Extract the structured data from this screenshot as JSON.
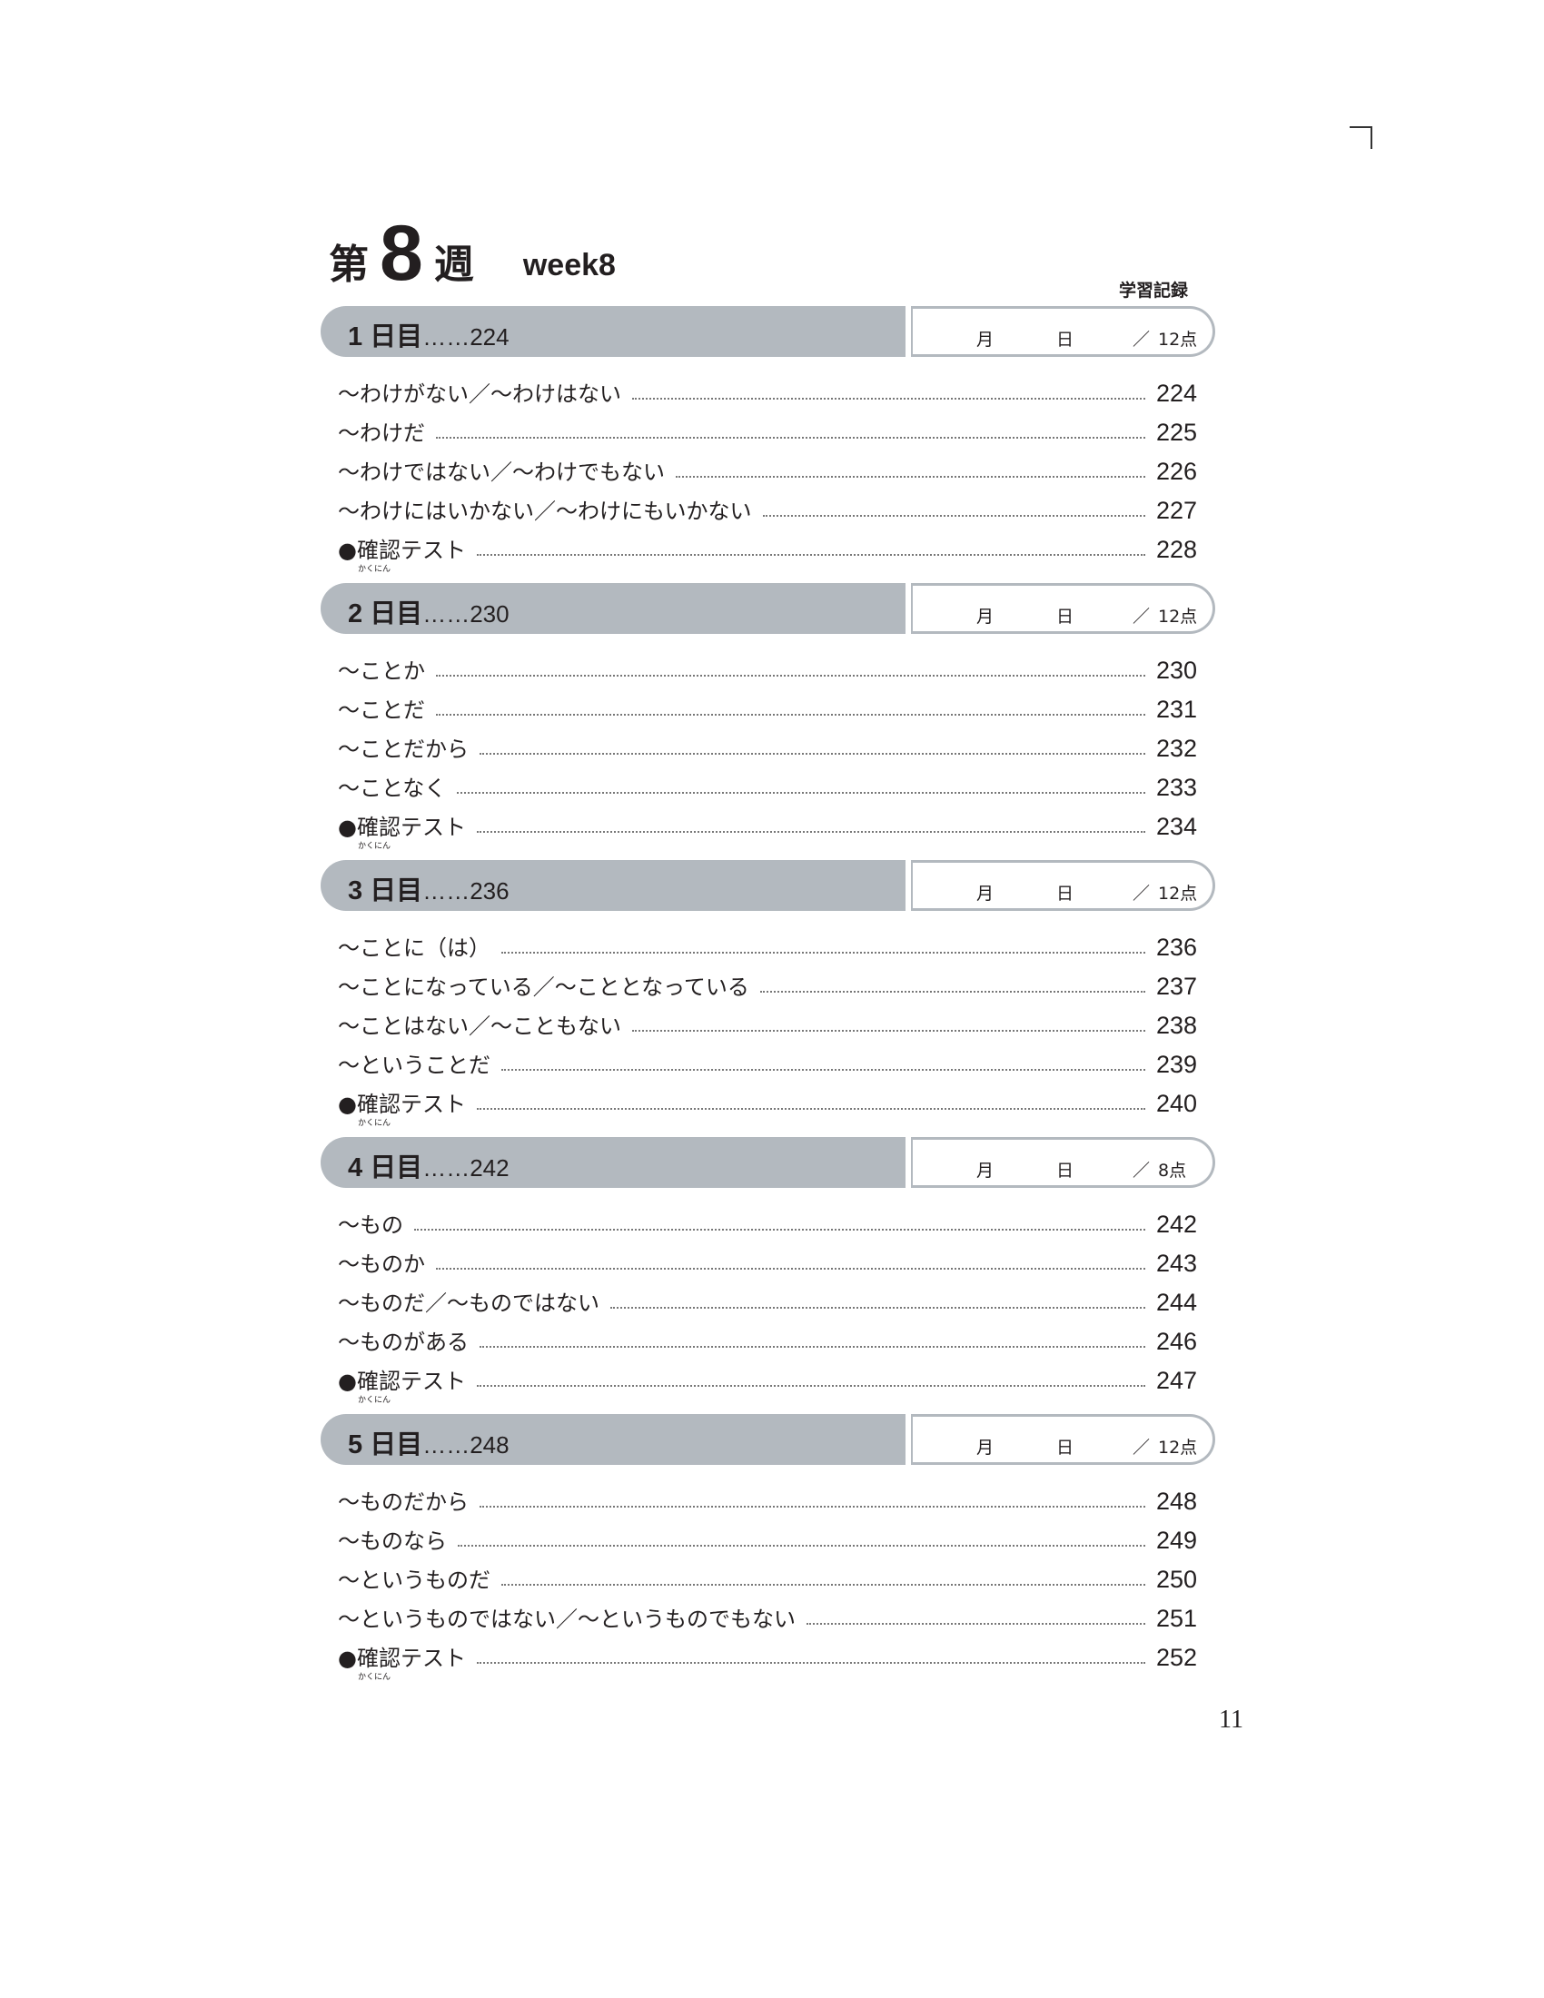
{
  "header": {
    "week_kanji_1": "第",
    "week_number": "8",
    "week_kanji_2": "週",
    "week_label": "week8",
    "record_label": "学習記録"
  },
  "record_box": {
    "month": "月",
    "day": "日",
    "slash": "／"
  },
  "sections": [
    {
      "day": "1 日目",
      "sep": "……",
      "page": "224",
      "score": "12点",
      "items": [
        {
          "label": "〜わけがない／〜わけはない",
          "page": "224"
        },
        {
          "label": "〜わけだ",
          "page": "225"
        },
        {
          "label": "〜わけではない／〜わけでもない",
          "page": "226"
        },
        {
          "label": "〜わけにはいかない／〜わけにもいかない",
          "page": "227"
        },
        {
          "label": "●確認テスト",
          "ruby": "かくにん",
          "page": "228"
        }
      ]
    },
    {
      "day": "2 日目",
      "sep": "……",
      "page": "230",
      "score": "12点",
      "items": [
        {
          "label": "〜ことか",
          "page": "230"
        },
        {
          "label": "〜ことだ",
          "page": "231"
        },
        {
          "label": "〜ことだから",
          "page": "232"
        },
        {
          "label": "〜ことなく",
          "page": "233"
        },
        {
          "label": "●確認テスト",
          "ruby": "かくにん",
          "page": "234"
        }
      ]
    },
    {
      "day": "3 日目",
      "sep": "……",
      "page": "236",
      "score": "12点",
      "items": [
        {
          "label": "〜ことに（は）",
          "page": "236"
        },
        {
          "label": "〜ことになっている／〜こととなっている",
          "page": "237"
        },
        {
          "label": "〜ことはない／〜こともない",
          "page": "238"
        },
        {
          "label": "〜ということだ",
          "page": "239"
        },
        {
          "label": "●確認テスト",
          "ruby": "かくにん",
          "page": "240"
        }
      ]
    },
    {
      "day": "4 日目",
      "sep": "……",
      "page": "242",
      "score": "8点",
      "items": [
        {
          "label": "〜もの",
          "page": "242"
        },
        {
          "label": "〜ものか",
          "page": "243"
        },
        {
          "label": "〜ものだ／〜ものではない",
          "page": "244"
        },
        {
          "label": "〜ものがある",
          "page": "246"
        },
        {
          "label": "●確認テスト",
          "ruby": "かくにん",
          "page": "247"
        }
      ]
    },
    {
      "day": "5 日目",
      "sep": "……",
      "page": "248",
      "score": "12点",
      "items": [
        {
          "label": "〜ものだから",
          "page": "248"
        },
        {
          "label": "〜ものなら",
          "page": "249"
        },
        {
          "label": "〜というものだ",
          "page": "250"
        },
        {
          "label": "〜というものではない／〜というものでもない",
          "page": "251"
        },
        {
          "label": "●確認テスト",
          "ruby": "かくにん",
          "page": "252"
        }
      ]
    }
  ],
  "page_number": "11"
}
